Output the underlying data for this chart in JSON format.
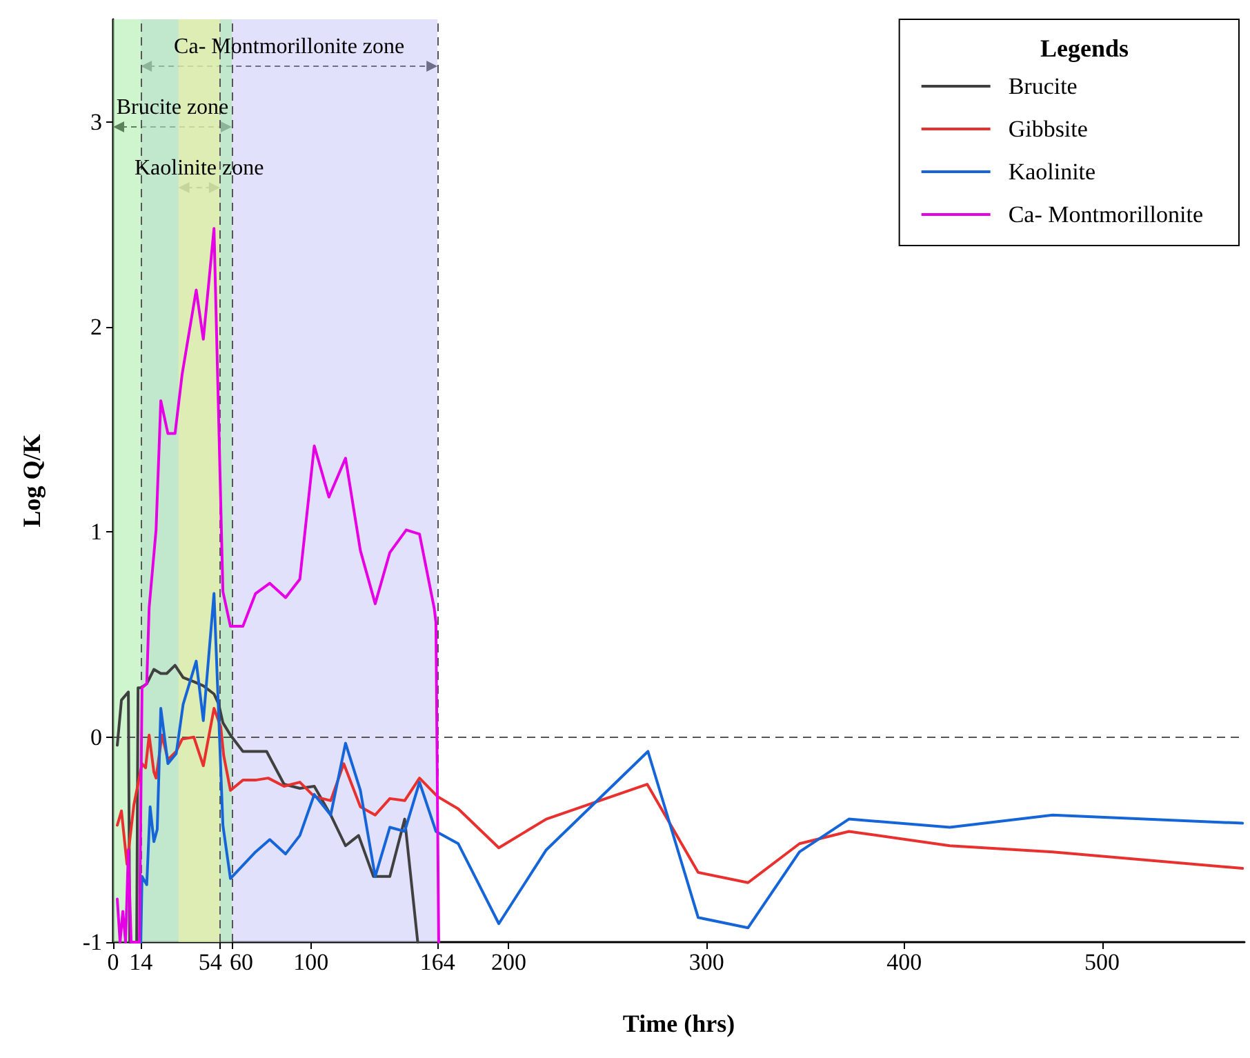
{
  "chart_data": {
    "type": "line",
    "xlabel": "Time (hrs)",
    "ylabel": "Log Q/K",
    "legend_title": "Legends",
    "xlim": [
      0,
      572
    ],
    "xticks": [
      0,
      14,
      54,
      60,
      100,
      164,
      200,
      300,
      400,
      500
    ],
    "ylim": [
      -1,
      3.5
    ],
    "yticks": [
      -1,
      0,
      1,
      2,
      3
    ],
    "grid": false,
    "legend": "top right",
    "line_style": "solid",
    "marker": "none",
    "bands": [
      {
        "axis": "x",
        "from": 14,
        "to": 164,
        "label": "Ca- Montmorillonite zone",
        "color": "#c8c8f8"
      },
      {
        "axis": "x",
        "from": 0,
        "to": 60,
        "label": "Brucite zone",
        "color": "#a8eca8"
      },
      {
        "axis": "x",
        "from": 33,
        "to": 54,
        "label": "Kaolinite zone",
        "color": "#f4f2a0"
      }
    ],
    "ref_lines": [
      {
        "axis": "y",
        "value": 0,
        "line_style": "dashed",
        "color": "#555555"
      },
      {
        "axis": "x",
        "value": 14,
        "line_style": "dashed",
        "color": "#555555"
      },
      {
        "axis": "x",
        "value": 54,
        "line_style": "dashed",
        "color": "#555555"
      },
      {
        "axis": "x",
        "value": 60,
        "line_style": "dashed",
        "color": "#555555"
      },
      {
        "axis": "x",
        "value": 164,
        "line_style": "dashed",
        "color": "#555555"
      }
    ],
    "series": [
      {
        "name": "Brucite",
        "color": "#404040",
        "x": [
          2.1,
          4.2,
          7.7,
          8.4,
          11.9,
          12.6,
          14,
          17.0,
          20.6,
          24.1,
          27.1,
          31.3,
          35.4,
          40.8,
          45.6,
          51.0,
          53.4,
          55.5,
          59.3,
          65.6,
          77.6,
          86.4,
          94.4,
          101.7,
          110,
          117.5,
          124.1,
          131.6,
          139.9,
          147.4,
          154
        ],
        "values": [
          -0.04,
          0.18,
          0.22,
          -1,
          -1,
          0.24,
          0.24,
          0.26,
          0.33,
          0.31,
          0.31,
          0.35,
          0.29,
          0.27,
          0.25,
          0.21,
          0.16,
          0.07,
          0.01,
          -0.07,
          -0.07,
          -0.23,
          -0.25,
          -0.24,
          -0.38,
          -0.53,
          -0.48,
          -0.68,
          -0.68,
          -0.4,
          -1
        ]
      },
      {
        "name": "Gibbsite",
        "color": "#e8312f",
        "x": [
          2.1,
          4.2,
          7,
          10.5,
          14.6,
          16.4,
          18.2,
          20.6,
          21.7,
          24.7,
          27.7,
          31.9,
          34.9,
          40.8,
          45.6,
          51.0,
          54.4,
          55.9,
          59.3,
          65.6,
          72,
          78.4,
          86.4,
          94.4,
          101.7,
          110,
          116.6,
          125,
          132.5,
          139.9,
          147.4,
          154.9,
          164,
          174.5,
          195,
          219,
          270,
          295.8,
          321,
          347,
          372,
          423,
          475,
          571
        ],
        "values": [
          -0.43,
          -0.36,
          -0.62,
          -0.33,
          -0.13,
          -0.15,
          0.01,
          -0.17,
          -0.2,
          0.01,
          -0.11,
          -0.07,
          -0.01,
          0,
          -0.14,
          0.14,
          0.05,
          -0.09,
          -0.26,
          -0.21,
          -0.21,
          -0.2,
          -0.24,
          -0.22,
          -0.29,
          -0.31,
          -0.13,
          -0.34,
          -0.38,
          -0.3,
          -0.31,
          -0.2,
          -0.29,
          -0.35,
          -0.54,
          -0.4,
          -0.23,
          -0.66,
          -0.71,
          -0.52,
          -0.46,
          -0.53,
          -0.56,
          -0.64
        ]
      },
      {
        "name": "Kaolinite",
        "color": "#1565d8",
        "x": [
          14,
          14.6,
          17.0,
          18.7,
          20.6,
          22.3,
          24.1,
          27.7,
          31.9,
          35.4,
          42.0,
          45.6,
          51.0,
          55.5,
          59.3,
          72,
          79.2,
          87.2,
          94.4,
          101.7,
          110,
          117.5,
          125,
          132.5,
          139.9,
          147.4,
          154.9,
          163.2,
          174.5,
          195,
          219,
          270.4,
          295.8,
          321,
          347,
          372,
          423,
          475,
          571
        ],
        "values": [
          -1,
          -0.68,
          -0.72,
          -0.34,
          -0.51,
          -0.45,
          0.14,
          -0.13,
          -0.08,
          0.16,
          0.37,
          0.08,
          0.7,
          -0.43,
          -0.69,
          -0.56,
          -0.5,
          -0.57,
          -0.48,
          -0.28,
          -0.38,
          -0.03,
          -0.26,
          -0.68,
          -0.44,
          -0.46,
          -0.22,
          -0.46,
          -0.52,
          -0.91,
          -0.55,
          -0.07,
          -0.88,
          -0.93,
          -0.56,
          -0.4,
          -0.44,
          -0.38,
          -0.42
        ]
      },
      {
        "name": "Ca- Montmorillonite",
        "color": "#e600e6",
        "x": [
          2.1,
          3.5,
          4.9,
          6.3,
          7.7,
          9.1,
          13.3,
          14.6,
          17.0,
          18.2,
          21.7,
          24.1,
          27.7,
          31.3,
          34.9,
          42.0,
          45.6,
          51.0,
          55.5,
          59.3,
          65.6,
          72,
          79.2,
          87.2,
          94.4,
          101.7,
          109.1,
          117.5,
          125,
          132.5,
          139.9,
          148.2,
          154.9,
          162.3,
          163.2,
          164.6
        ],
        "values": [
          -0.79,
          -1,
          -0.85,
          -1,
          -0.55,
          -1,
          -1,
          0.24,
          0.26,
          0.63,
          1.01,
          1.64,
          1.48,
          1.48,
          1.77,
          2.18,
          1.94,
          2.48,
          0.71,
          0.54,
          0.54,
          0.7,
          0.75,
          0.68,
          0.77,
          1.42,
          1.17,
          1.36,
          0.91,
          0.65,
          0.9,
          1.01,
          0.99,
          0.63,
          0.56,
          -1
        ]
      }
    ]
  }
}
